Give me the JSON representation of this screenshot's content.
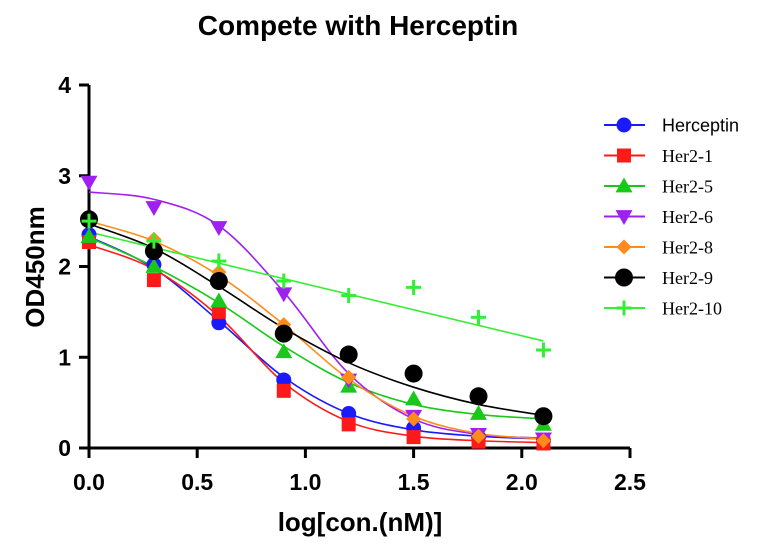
{
  "chart_data": {
    "type": "scatter",
    "title": "Compete with Herceptin",
    "xlabel": "log[con.(nM)]",
    "ylabel": "OD450nm",
    "xlim": [
      0.0,
      2.5
    ],
    "ylim": [
      0,
      4
    ],
    "x_ticks": [
      "0.0",
      "0.5",
      "1.0",
      "1.5",
      "2.0",
      "2.5"
    ],
    "x_tick_values": [
      0.0,
      0.5,
      1.0,
      1.5,
      2.0,
      2.5
    ],
    "y_ticks": [
      "0",
      "1",
      "2",
      "3",
      "4"
    ],
    "y_tick_values": [
      0,
      1,
      2,
      3,
      4
    ],
    "legend_position": "right",
    "x": [
      0.0,
      0.3,
      0.6,
      0.9,
      1.2,
      1.5,
      1.8,
      2.1
    ],
    "series": [
      {
        "name": "Herceptin",
        "color": "#1a1aff",
        "marker": "circle",
        "values": [
          2.35,
          2.02,
          1.38,
          0.75,
          0.38,
          0.22,
          0.12,
          0.08
        ],
        "fit": [
          [
            0.0,
            2.33
          ],
          [
            0.3,
            1.98
          ],
          [
            0.6,
            1.4
          ],
          [
            0.9,
            0.78
          ],
          [
            1.2,
            0.38
          ],
          [
            1.5,
            0.2
          ],
          [
            1.8,
            0.13
          ],
          [
            2.1,
            0.1
          ]
        ]
      },
      {
        "name": "Her2-1",
        "color": "#ff1a1a",
        "marker": "square",
        "values": [
          2.27,
          1.85,
          1.5,
          0.63,
          0.26,
          0.12,
          0.07,
          0.05
        ],
        "fit": [
          [
            0.0,
            2.24
          ],
          [
            0.3,
            1.97
          ],
          [
            0.6,
            1.45
          ],
          [
            0.9,
            0.72
          ],
          [
            1.2,
            0.29
          ],
          [
            1.5,
            0.13
          ],
          [
            1.8,
            0.08
          ],
          [
            2.1,
            0.06
          ]
        ]
      },
      {
        "name": "Her2-5",
        "color": "#1ac81a",
        "marker": "triangle-up",
        "values": [
          2.33,
          2.0,
          1.62,
          1.06,
          0.68,
          0.54,
          0.38,
          0.26
        ],
        "fit": [
          [
            0.0,
            2.32
          ],
          [
            0.3,
            2.0
          ],
          [
            0.6,
            1.6
          ],
          [
            0.9,
            1.12
          ],
          [
            1.2,
            0.72
          ],
          [
            1.5,
            0.48
          ],
          [
            1.8,
            0.37
          ],
          [
            2.1,
            0.32
          ]
        ]
      },
      {
        "name": "Her2-6",
        "color": "#a020f0",
        "marker": "triangle-down",
        "values": [
          2.93,
          2.65,
          2.43,
          1.7,
          0.75,
          0.35,
          0.15,
          0.1
        ],
        "fit": [
          [
            0.0,
            2.82
          ],
          [
            0.3,
            2.74
          ],
          [
            0.6,
            2.45
          ],
          [
            0.9,
            1.72
          ],
          [
            1.2,
            0.82
          ],
          [
            1.5,
            0.32
          ],
          [
            1.8,
            0.15
          ],
          [
            2.1,
            0.11
          ]
        ]
      },
      {
        "name": "Her2-8",
        "color": "#ff8c1a",
        "marker": "diamond",
        "values": [
          2.5,
          2.3,
          1.94,
          1.36,
          0.78,
          0.32,
          0.13,
          0.08
        ],
        "fit": [
          [
            0.0,
            2.5
          ],
          [
            0.3,
            2.28
          ],
          [
            0.6,
            1.9
          ],
          [
            0.9,
            1.36
          ],
          [
            1.2,
            0.76
          ],
          [
            1.5,
            0.35
          ],
          [
            1.8,
            0.16
          ],
          [
            2.1,
            0.1
          ]
        ]
      },
      {
        "name": "Her2-9",
        "color": "#000000",
        "marker": "circle-large",
        "values": [
          2.52,
          2.17,
          1.84,
          1.26,
          1.03,
          0.82,
          0.57,
          0.35
        ],
        "fit": [
          [
            0.0,
            2.47
          ],
          [
            0.3,
            2.2
          ],
          [
            0.6,
            1.78
          ],
          [
            0.9,
            1.32
          ],
          [
            1.2,
            0.94
          ],
          [
            1.5,
            0.67
          ],
          [
            1.8,
            0.48
          ],
          [
            2.1,
            0.36
          ]
        ]
      },
      {
        "name": "Her2-10",
        "color": "#33ee33",
        "marker": "plus",
        "values": [
          2.5,
          2.28,
          2.06,
          1.84,
          1.68,
          1.77,
          1.44,
          1.08
        ],
        "fit": [
          [
            0.0,
            2.38
          ],
          [
            2.1,
            1.18
          ]
        ]
      }
    ]
  }
}
